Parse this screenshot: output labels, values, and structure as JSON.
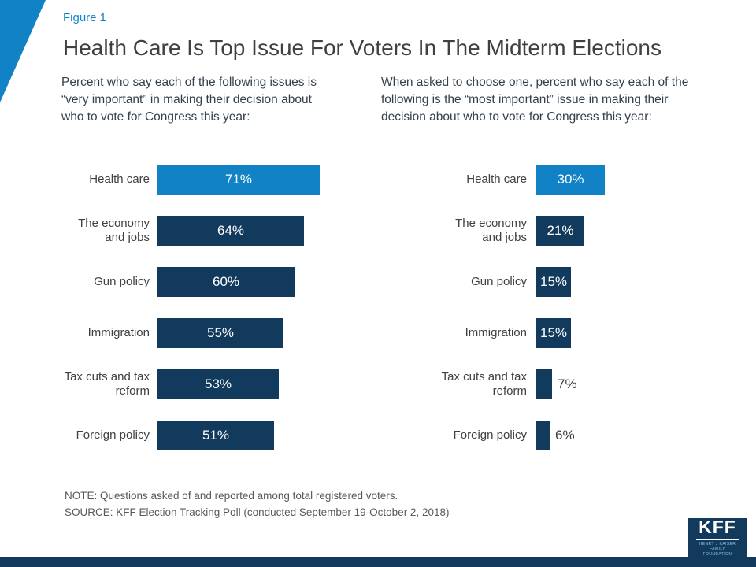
{
  "header": {
    "figure_label": "Figure 1",
    "title": "Health Care Is Top Issue For Voters In The Midterm Elections"
  },
  "chart_data": [
    {
      "type": "bar",
      "orientation": "horizontal",
      "subtitle": "Percent who say each of the following issues is “very important” in making their decision about who to vote for Congress this year:",
      "categories": [
        "Health care",
        "The economy and jobs",
        "Gun policy",
        "Immigration",
        "Tax cuts and tax reform",
        "Foreign policy"
      ],
      "values": [
        71,
        64,
        60,
        55,
        53,
        51
      ],
      "labels": [
        "71%",
        "64%",
        "60%",
        "55%",
        "53%",
        "51%"
      ],
      "xlim": [
        0,
        100
      ],
      "highlight_index": 0,
      "value_label_position": "inside",
      "grid": false,
      "legend": false
    },
    {
      "type": "bar",
      "orientation": "horizontal",
      "subtitle": "When asked to choose one, percent who say each of the following is the “most important” issue in making their decision about who to vote for Congress this year:",
      "categories": [
        "Health care",
        "The economy and jobs",
        "Gun policy",
        "Immigration",
        "Tax cuts and tax reform",
        "Foreign policy"
      ],
      "values": [
        30,
        21,
        15,
        15,
        7,
        6
      ],
      "labels": [
        "30%",
        "21%",
        "15%",
        "15%",
        "7%",
        "6%"
      ],
      "xlim": [
        0,
        100
      ],
      "highlight_index": 0,
      "value_label_position": "inside-or-outside-when-small",
      "grid": false,
      "legend": false
    }
  ],
  "footer": {
    "note": "NOTE: Questions asked of and reported among total registered voters.",
    "source": "SOURCE: KFF Election Tracking Poll (conducted September 19-October 2, 2018)",
    "logo": {
      "text": "KFF",
      "subtext": "HENRY J KAISER FAMILY FOUNDATION"
    }
  },
  "colors": {
    "highlight_blue": "#1182c5",
    "navy": "#123a5c",
    "title_gray": "#404040",
    "subtitle_dark": "#33404d",
    "note_gray": "#595959",
    "bar_value_white": "#ffffff",
    "outside_value_dark": "#3c3c3c"
  }
}
